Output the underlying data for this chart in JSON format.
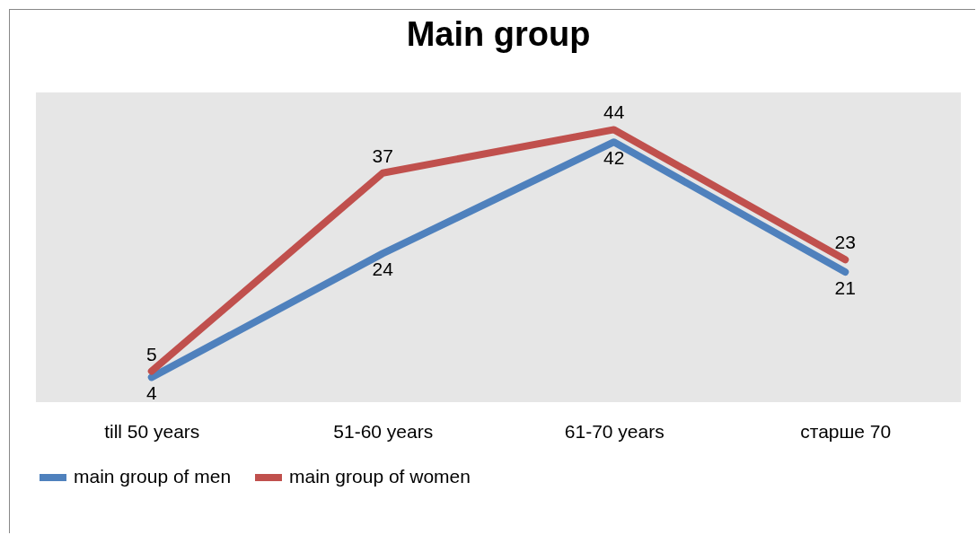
{
  "chart_data": {
    "type": "line",
    "title": "Main group",
    "categories": [
      "till 50 years",
      "51-60 years",
      "61-70 years",
      "старше 70"
    ],
    "series": [
      {
        "name": "main group of men",
        "color": "#4f81bd",
        "values": [
          4,
          24,
          42,
          21
        ]
      },
      {
        "name": "main group of women",
        "color": "#c0504d",
        "values": [
          5,
          37,
          44,
          23
        ]
      }
    ],
    "ylim": [
      0,
      50
    ],
    "data_labels": true,
    "grid": false,
    "legend": "bottom",
    "marker": "none",
    "line_style": "solid"
  }
}
